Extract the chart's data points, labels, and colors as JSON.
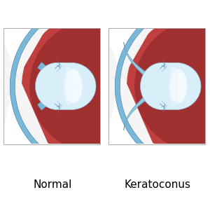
{
  "background_color": "#ffffff",
  "title_normal": "Normal",
  "title_keratoconus": "Keratoconus",
  "title_fontsize": 11,
  "box_border": "#aaaaaa",
  "sclera_white": "#f0f0f0",
  "choroid_red": "#c04040",
  "choroid_dark": "#a03030",
  "blue_coat": "#7ab8d8",
  "blue_coat_dark": "#4a88b8",
  "cornea_blue": "#7ab8d4",
  "cornea_mid": "#90c0d8",
  "cornea_light": "#c8dff0",
  "cornea_dark": "#5a98b8",
  "lens_main": "#d8eef8",
  "lens_light": "#eef7ff",
  "lens_white": "#ffffff",
  "lens_edge": "#90c0d8",
  "iris_blue": "#6898b8",
  "iris_dark": "#4878a0",
  "zonule_color": "#5890c0",
  "pupil_color": "#1a2840"
}
